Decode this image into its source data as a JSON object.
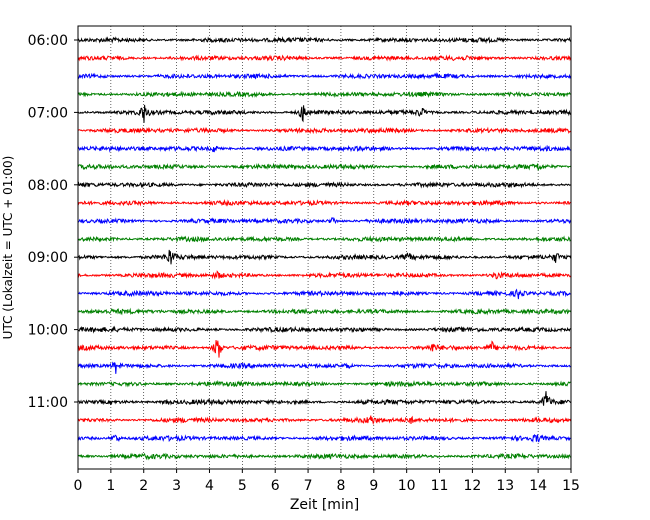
{
  "chart_data": {
    "type": "line",
    "xlabel": "Zeit  [min]",
    "ylabel": "UTC (Lokalzeit = UTC + 01:00)",
    "xlim": [
      0,
      15
    ],
    "x_ticks": [
      "0",
      "1",
      "2",
      "3",
      "4",
      "5",
      "6",
      "7",
      "8",
      "9",
      "10",
      "11",
      "12",
      "13",
      "14",
      "15"
    ],
    "y_tick_labels": [
      "06:00",
      "07:00",
      "08:00",
      "09:00",
      "10:00",
      "11:00"
    ],
    "grid": "vertical-dotted",
    "trace_colors": [
      "#000000",
      "#ff0000",
      "#0000ff",
      "#008000"
    ],
    "trace_count": 24,
    "events": [
      {
        "row": 4,
        "x": 2.0,
        "amp": 1.0
      },
      {
        "row": 4,
        "x": 6.85,
        "amp": 1.0
      },
      {
        "row": 4,
        "x": 10.45,
        "amp": 0.5
      },
      {
        "row": 12,
        "x": 2.8,
        "amp": 0.9
      },
      {
        "row": 12,
        "x": 10.05,
        "amp": 0.4
      },
      {
        "row": 12,
        "x": 14.55,
        "amp": 0.5
      },
      {
        "row": 13,
        "x": 4.25,
        "amp": 0.35
      },
      {
        "row": 13,
        "x": 12.75,
        "amp": 0.35
      },
      {
        "row": 14,
        "x": 13.4,
        "amp": 0.45
      },
      {
        "row": 17,
        "x": 4.25,
        "amp": 1.6
      },
      {
        "row": 17,
        "x": 12.6,
        "amp": 0.5
      },
      {
        "row": 17,
        "x": 10.8,
        "amp": 0.35
      },
      {
        "row": 18,
        "x": 1.15,
        "amp": 0.6
      },
      {
        "row": 18,
        "x": 8.2,
        "amp": 0.3
      },
      {
        "row": 20,
        "x": 14.25,
        "amp": 1.1
      },
      {
        "row": 20,
        "x": 2.7,
        "amp": 0.35
      },
      {
        "row": 21,
        "x": 8.9,
        "amp": 0.4
      },
      {
        "row": 21,
        "x": 10.1,
        "amp": 0.4
      },
      {
        "row": 22,
        "x": 1.15,
        "amp": 0.5
      },
      {
        "row": 22,
        "x": 13.95,
        "amp": 0.35
      },
      {
        "row": 10,
        "x": 7.75,
        "amp": 0.4
      },
      {
        "row": 6,
        "x": 4.15,
        "amp": 0.4
      },
      {
        "row": 7,
        "x": 14.0,
        "amp": 0.3
      }
    ]
  }
}
